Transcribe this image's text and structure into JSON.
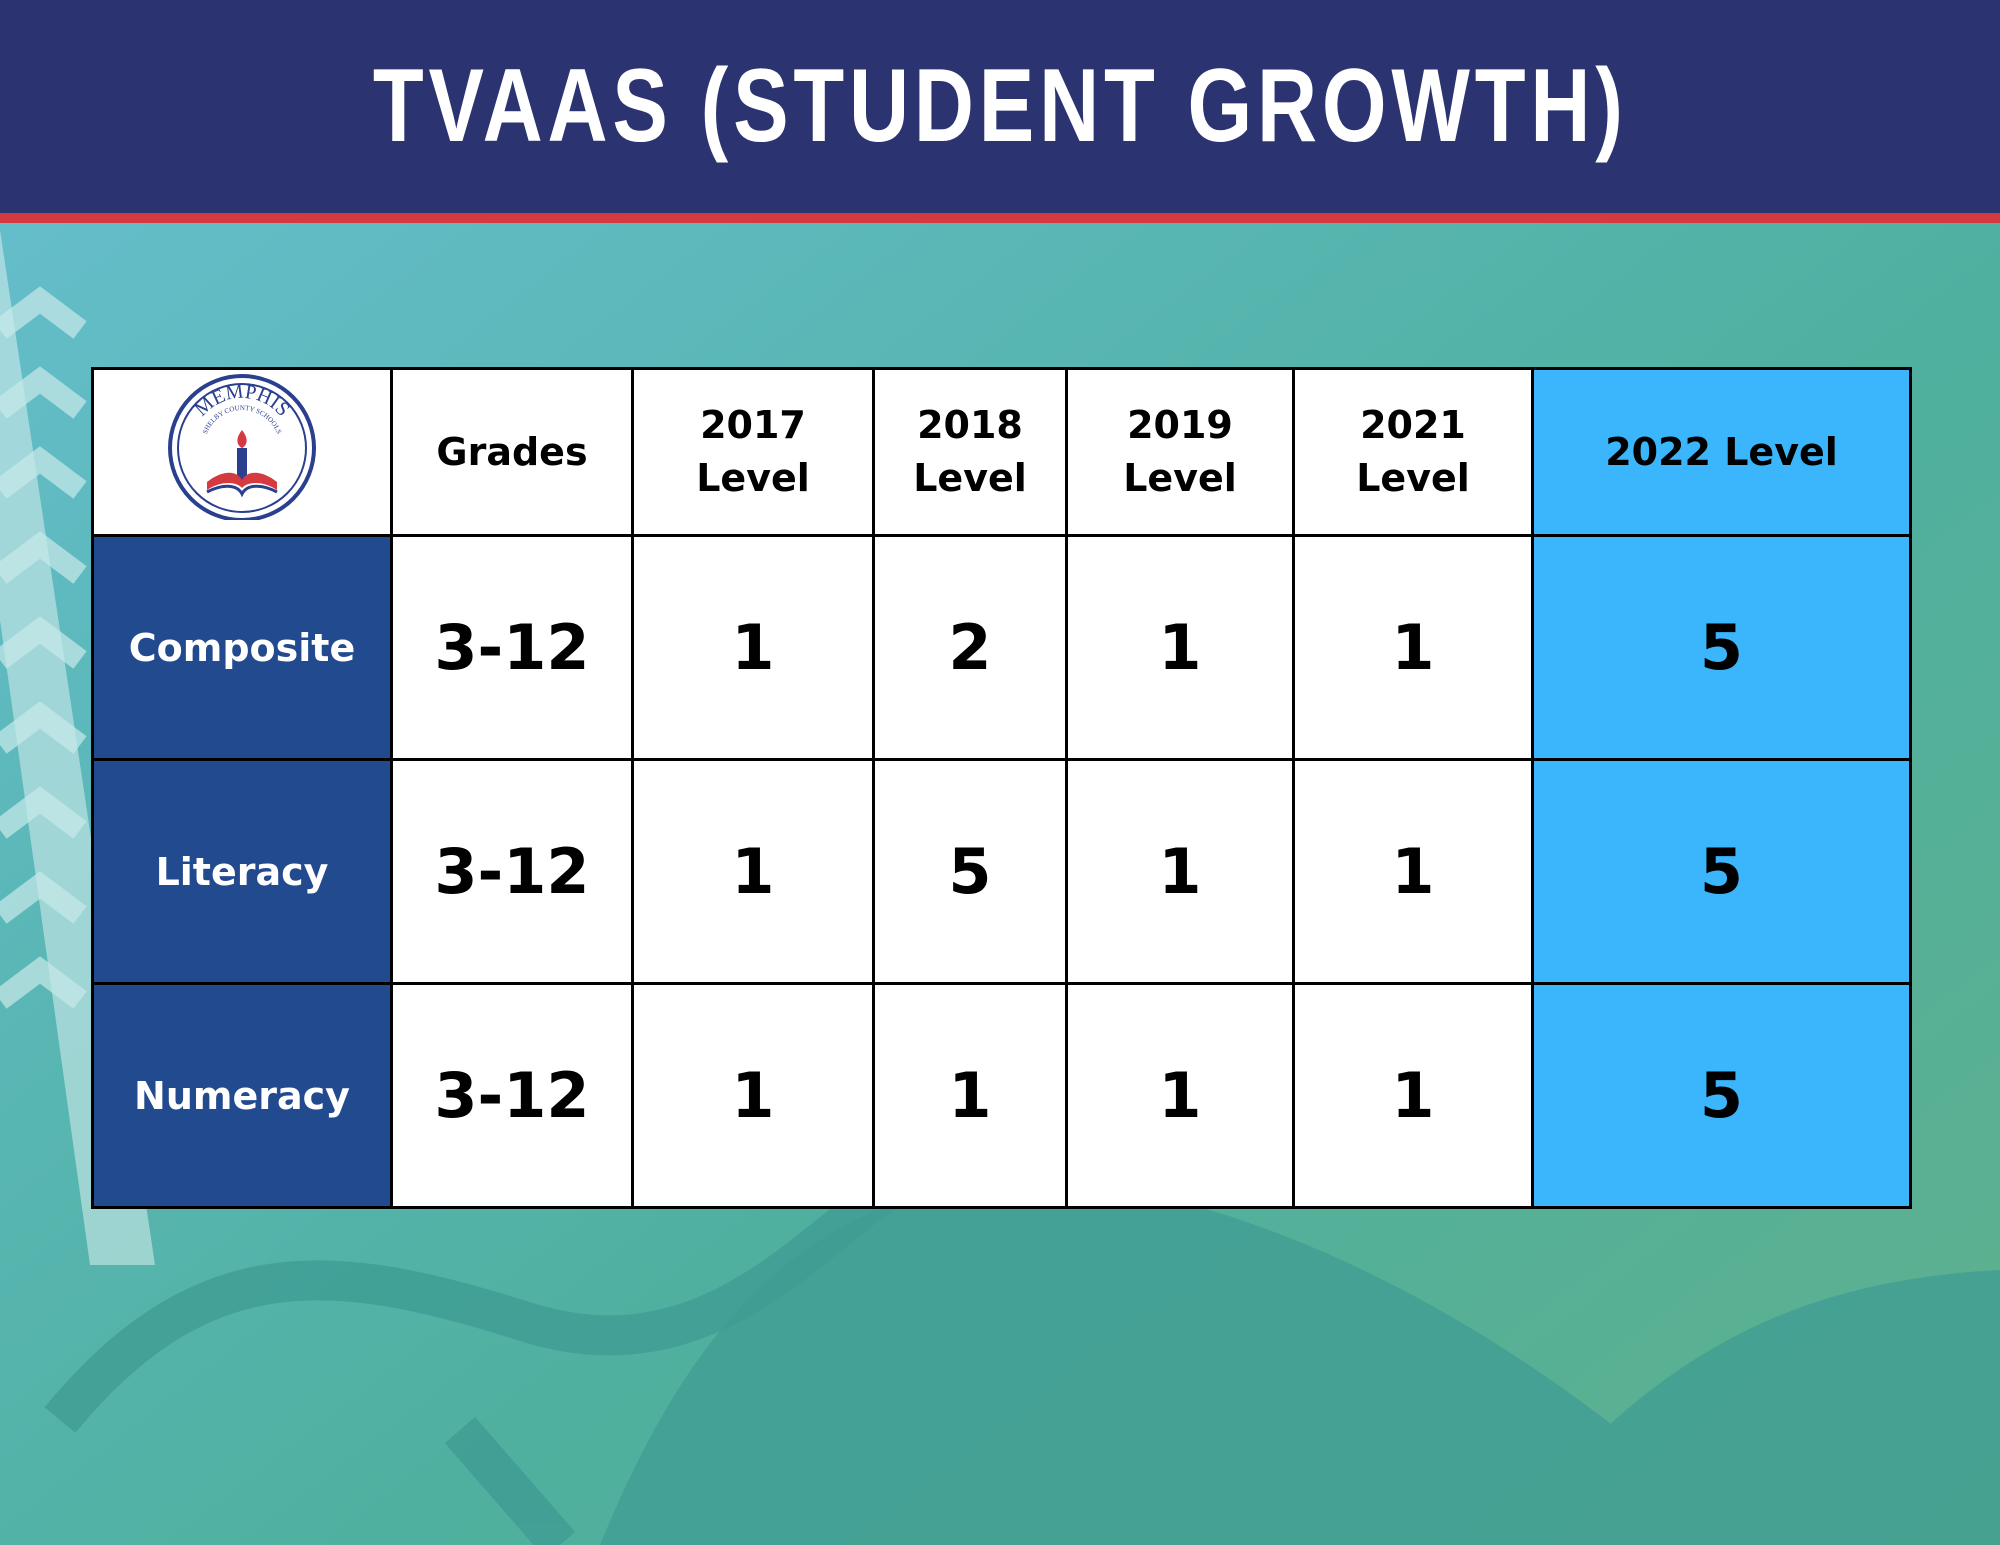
{
  "header": {
    "title": "TVAAS (STUDENT GROWTH)"
  },
  "logo": {
    "name": "MEMPHIS",
    "subtitle": "SHELBY COUNTY SCHOOLS"
  },
  "table": {
    "columns": [
      "Grades",
      "2017 Level",
      "2018 Level",
      "2019 Level",
      "2021 Level",
      "2022 Level"
    ],
    "rows": [
      [
        "Composite",
        "3-12",
        "1",
        "2",
        "1",
        "1",
        "5"
      ],
      [
        "Literacy",
        "3-12",
        "1",
        "5",
        "1",
        "1",
        "5"
      ],
      [
        "Numeracy",
        "3-12",
        "1",
        "1",
        "1",
        "1",
        "5"
      ]
    ]
  }
}
